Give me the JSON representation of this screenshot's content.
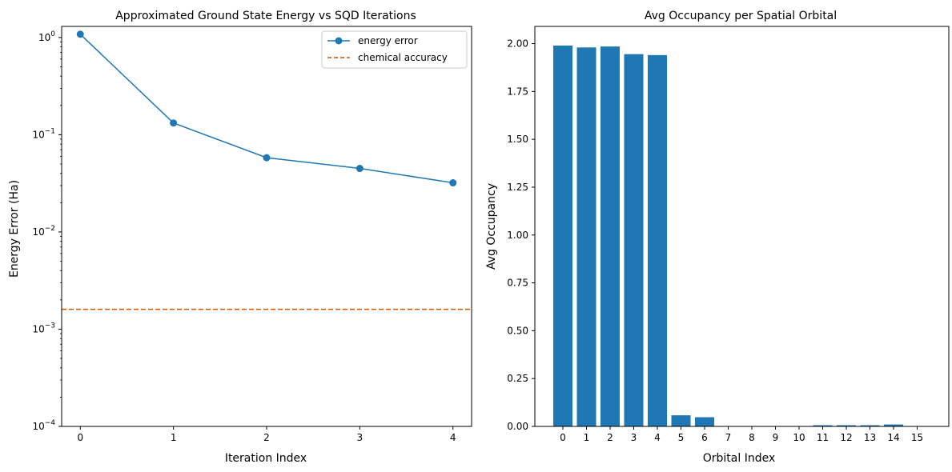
{
  "colors": {
    "series": "#1f77b4",
    "reference": "#cc5500",
    "axis": "#000000",
    "legend_border": "#cccccc"
  },
  "chart_data": [
    {
      "type": "line",
      "title": "Approximated Ground State Energy vs SQD Iterations",
      "xlabel": "Iteration Index",
      "ylabel": "Energy Error (Ha)",
      "yscale": "log",
      "xlim": [
        -0.2,
        4.2
      ],
      "ylim": [
        0.0001,
        1.3
      ],
      "x": [
        0,
        1,
        2,
        3,
        4
      ],
      "x_ticks": [
        0,
        1,
        2,
        3,
        4
      ],
      "y_ticks": [
        {
          "value": 0.0001,
          "base": "10",
          "exp": "−4"
        },
        {
          "value": 0.001,
          "base": "10",
          "exp": "−3"
        },
        {
          "value": 0.01,
          "base": "10",
          "exp": "−2"
        },
        {
          "value": 0.1,
          "base": "10",
          "exp": "−1"
        },
        {
          "value": 1,
          "base": "10",
          "exp": "0"
        }
      ],
      "series": [
        {
          "name": "energy error",
          "values": [
            1.08,
            0.132,
            0.058,
            0.045,
            0.032
          ],
          "marker": "circle",
          "style": "solid"
        }
      ],
      "reference_lines": [
        {
          "name": "chemical accuracy",
          "y": 0.0016,
          "style": "dashed"
        }
      ],
      "legend": {
        "position": "top-right",
        "entries": [
          "energy error",
          "chemical accuracy"
        ]
      },
      "grid": false
    },
    {
      "type": "bar",
      "title": "Avg Occupancy per Spatial Orbital",
      "xlabel": "Orbital Index",
      "ylabel": "Avg Occupancy",
      "ylim": [
        0,
        2.09
      ],
      "categories": [
        "0",
        "1",
        "2",
        "3",
        "4",
        "5",
        "6",
        "7",
        "8",
        "9",
        "10",
        "11",
        "12",
        "13",
        "14",
        "15"
      ],
      "values": [
        1.99,
        1.98,
        1.985,
        1.945,
        1.94,
        0.058,
        0.048,
        0.002,
        0.002,
        0.002,
        0.002,
        0.006,
        0.006,
        0.006,
        0.01,
        0.002
      ],
      "y_ticks": [
        {
          "value": 0,
          "label": "0.00"
        },
        {
          "value": 0.25,
          "label": "0.25"
        },
        {
          "value": 0.5,
          "label": "0.50"
        },
        {
          "value": 0.75,
          "label": "0.75"
        },
        {
          "value": 1.0,
          "label": "1.00"
        },
        {
          "value": 1.25,
          "label": "1.25"
        },
        {
          "value": 1.5,
          "label": "1.50"
        },
        {
          "value": 1.75,
          "label": "1.75"
        },
        {
          "value": 2.0,
          "label": "2.00"
        }
      ],
      "grid": false
    }
  ]
}
